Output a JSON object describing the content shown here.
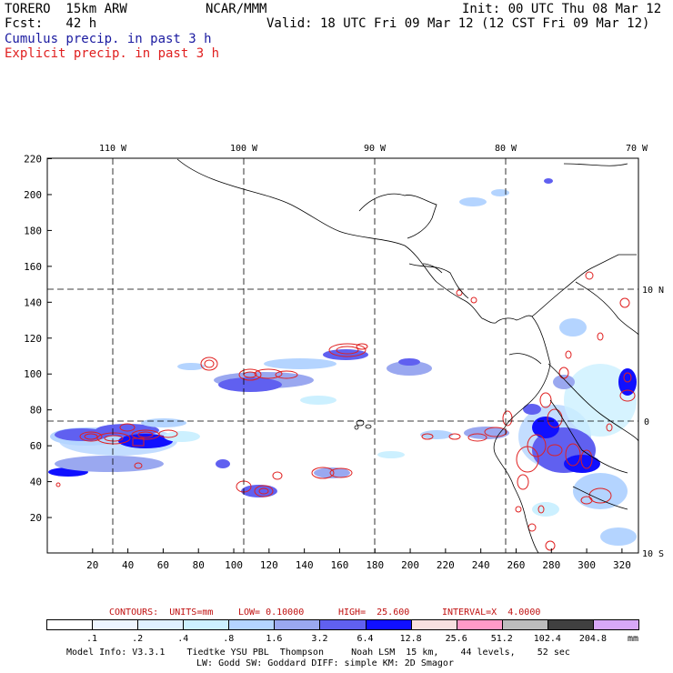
{
  "header": {
    "model": "TORERO  15km ARW",
    "org": "NCAR/MMM",
    "init": "Init: 00 UTC Thu 08 Mar 12",
    "fcst": "Fcst:   42 h",
    "valid": "Valid: 18 UTC Fri 09 Mar 12 (12 CST Fri 09 Mar 12)",
    "field1": "Cumulus precip. in past 3 h",
    "field2": "Explicit precip. in past 3 h"
  },
  "map": {
    "lon_labels": [
      "110 W",
      "100 W",
      "90 W",
      "80 W",
      "70 W"
    ],
    "lat_labels": [
      "10 N",
      "0",
      "10 S"
    ],
    "y_ticks": [
      "20",
      "40",
      "60",
      "80",
      "100",
      "120",
      "140",
      "160",
      "180",
      "200",
      "220"
    ],
    "x_ticks": [
      "20",
      "40",
      "60",
      "80",
      "100",
      "120",
      "140",
      "160",
      "180",
      "200",
      "220",
      "240",
      "260",
      "280",
      "300",
      "320"
    ]
  },
  "contour_info": {
    "contours": "CONTOURS:  UNITS=mm",
    "low": "LOW= 0.10000",
    "high": "HIGH=  25.600",
    "interval": "INTERVAL=X  4.0000"
  },
  "colorbar": {
    "colors": [
      "#ffffff",
      "#eef5ff",
      "#e0f0ff",
      "#ccf0ff",
      "#b4d4ff",
      "#9aa8f0",
      "#6060f0",
      "#1010ff",
      "#f8e0e0",
      "#ff9ac8",
      "#bdbdbd",
      "#404040",
      "#d8a8f8"
    ],
    "labels": [
      ".1",
      ".2",
      ".4",
      ".8",
      "1.6",
      "3.2",
      "6.4",
      "12.8",
      "25.6",
      "51.2",
      "102.4",
      "204.8"
    ],
    "units": "mm"
  },
  "footer": {
    "line1": "Model Info: V3.3.1    Tiedtke YSU PBL  Thompson     Noah LSM  15 km,    44 levels,    52 sec",
    "line2": "LW: Godd SW: Goddard DIFF: simple KM: 2D Smagor"
  }
}
